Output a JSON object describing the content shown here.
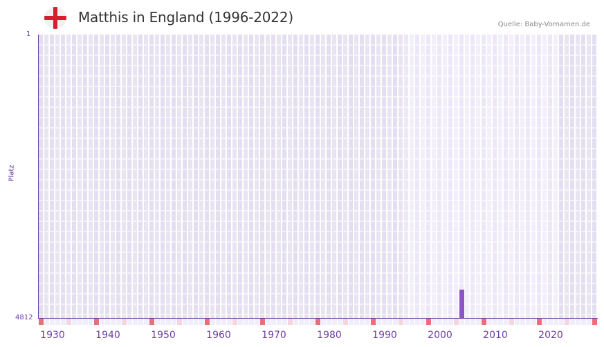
{
  "header": {
    "title": "Matthis in England (1996-2022)",
    "source": "Quelle: Baby-Vornamen.de",
    "flag_icon": "england-flag-icon"
  },
  "axes": {
    "y_top_label": "1",
    "y_bottom_label": "4812",
    "y_title": "Platz"
  },
  "colors": {
    "bar": "#8b55c6",
    "axis": "#6b3fa0",
    "bg_dark_a": "#e3dff0",
    "bg_dark_b": "#e8e4f2",
    "bg_light_a": "#ece8f8",
    "bg_light_b": "#f2effb",
    "marker_decade": "#e4717a",
    "marker_half": "#f5d5df",
    "marker_plain": "#f1eefb"
  },
  "chart_data": {
    "type": "bar",
    "title": "Matthis in England (1996-2022)",
    "xlabel": "",
    "ylabel": "Platz",
    "x_range": [
      1928,
      2028
    ],
    "ylim": [
      4812,
      1
    ],
    "y_inverted": true,
    "data_range_years": [
      1994,
      2021
    ],
    "x_ticks": [
      "1930",
      "1940",
      "1950",
      "1960",
      "1970",
      "1980",
      "1990",
      "2000",
      "2010",
      "2020"
    ],
    "points": [
      {
        "year": 2004,
        "rank": 4336
      }
    ],
    "grid": true,
    "legend": null
  }
}
